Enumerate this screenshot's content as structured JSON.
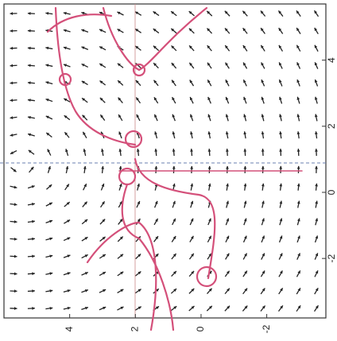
{
  "chart_data": {
    "type": "quiver",
    "xlim": [
      6,
      -3.8
    ],
    "xticks": [
      4,
      2,
      0,
      -2
    ],
    "ylim": [
      -3.8,
      5.7
    ],
    "yticks": [
      4,
      2,
      0,
      -2
    ],
    "color": "#222222"
  }
}
